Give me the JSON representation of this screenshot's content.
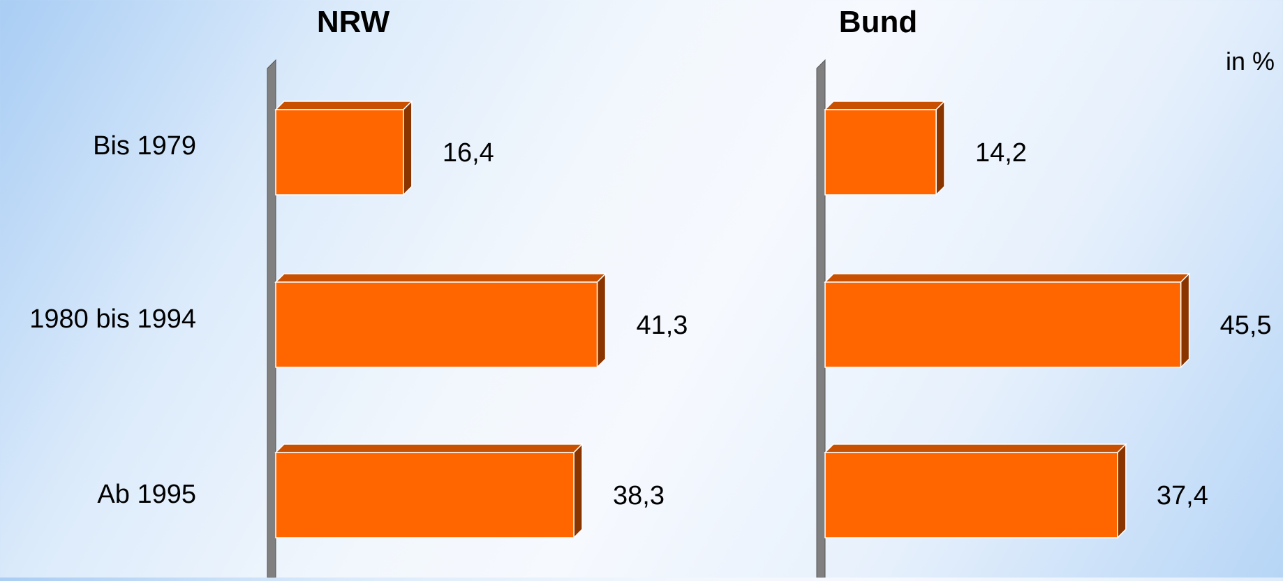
{
  "unit_label": "in %",
  "chart_data": [
    {
      "type": "bar",
      "orientation": "horizontal",
      "title": "NRW",
      "categories": [
        "Bis 1979",
        "1980 bis 1994",
        "Ab 1995"
      ],
      "values": [
        16.4,
        41.3,
        38.3
      ],
      "value_labels": [
        "16,4",
        "41,3",
        "38,3"
      ],
      "xlim": [
        0,
        50
      ],
      "grid": false,
      "bar_color": "#ff6600",
      "bar_top_color": "#c85000",
      "bar_side_color": "#8a3500"
    },
    {
      "type": "bar",
      "orientation": "horizontal",
      "title": "Bund",
      "categories": [
        "Bis 1979",
        "1980 bis 1994",
        "Ab 1995"
      ],
      "values": [
        14.2,
        45.5,
        37.4
      ],
      "value_labels": [
        "14,2",
        "45,5",
        "37,4"
      ],
      "xlim": [
        0,
        50
      ],
      "grid": false,
      "bar_color": "#ff6600",
      "bar_top_color": "#c85000",
      "bar_side_color": "#8a3500"
    }
  ]
}
